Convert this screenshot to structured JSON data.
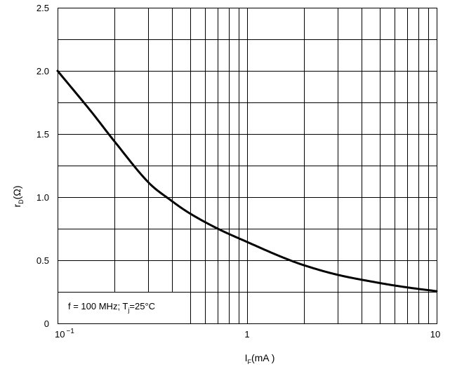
{
  "chart_data": {
    "type": "line",
    "xscale": "log",
    "xlim": [
      0.1,
      10
    ],
    "ylim": [
      0,
      2.5
    ],
    "grid": true,
    "x_major_ticks": [
      0.1,
      1,
      10
    ],
    "x_minor_ticks": [
      0.2,
      0.3,
      0.4,
      0.5,
      0.6,
      0.7,
      0.8,
      0.9,
      2,
      3,
      4,
      5,
      6,
      7,
      8,
      9
    ],
    "x_tick_labels": {
      "t0": {
        "base": "10",
        "exp": "−1"
      },
      "t1": "1",
      "t2": "10"
    },
    "y_ticks": [
      0,
      0.5,
      1.0,
      1.5,
      2.0,
      2.5
    ],
    "y_tick_labels": [
      "0",
      "0.5",
      "1.0",
      "1.5",
      "2.0",
      "2.5"
    ],
    "y_minor_grid": [
      0.25,
      0.75,
      1.25,
      1.75,
      2.25
    ],
    "xlabel": {
      "main": "I",
      "sub": "F",
      "rest": "(mA )"
    },
    "ylabel": {
      "main": "r",
      "sub": "D",
      "rest": "(Ω)"
    },
    "annotation": {
      "part1": "f = 100 MHz; T",
      "sub": "j",
      "part2": "=25°C"
    },
    "series": [
      {
        "x": [
          0.1,
          0.15,
          0.2,
          0.3,
          0.4,
          0.5,
          0.7,
          1,
          1.5,
          2,
          3,
          5,
          7,
          10
        ],
        "y": [
          2.0,
          1.68,
          1.44,
          1.12,
          0.97,
          0.87,
          0.75,
          0.645,
          0.53,
          0.46,
          0.385,
          0.32,
          0.285,
          0.255
        ]
      }
    ],
    "colors": {
      "line": "#000000",
      "grid": "#000000",
      "background": "#ffffff"
    }
  }
}
